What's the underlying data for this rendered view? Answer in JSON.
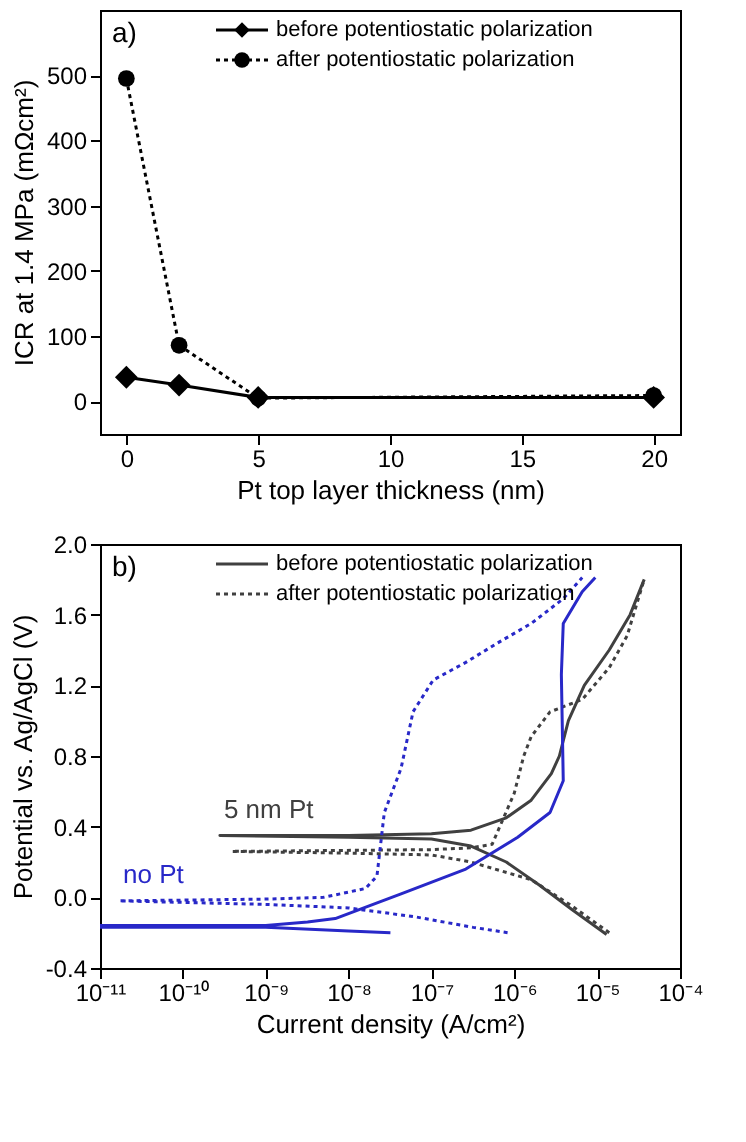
{
  "chart_data": [
    {
      "type": "line",
      "xlabel": "Pt top layer thickness (nm)",
      "ylabel": "ICR at 1.4 MPa (mΩcm²)",
      "annotations": [
        "a)"
      ],
      "xlim": [
        -1,
        21
      ],
      "xticks": [
        0,
        5,
        10,
        15,
        20
      ],
      "ylim": [
        -50,
        600
      ],
      "yticks": [
        0,
        100,
        200,
        300,
        400,
        500
      ],
      "grid": false,
      "legend": "top left",
      "series": [
        {
          "name": "before potentiostatic polarization",
          "color": "#000000",
          "marker": "diamond",
          "line_style": "solid",
          "x": [
            0,
            2,
            5,
            20
          ],
          "values": [
            37,
            25,
            6,
            6
          ]
        },
        {
          "name": "after potentiostatic polarization",
          "color": "#000000",
          "marker": "circle",
          "line_style": "dotted",
          "x": [
            0,
            2,
            5,
            20
          ],
          "values": [
            495,
            86,
            5,
            9
          ]
        }
      ]
    },
    {
      "type": "line",
      "xlabel": "Current density (A/cm²)",
      "ylabel": "Potential vs. Ag/AgCl (V)",
      "log": "x",
      "grid": false,
      "legend": "top left",
      "annotations": [
        "b)",
        {
          "text": "5 nm Pt",
          "x": 2.8e-10,
          "y": 0.35
        },
        {
          "text": "no Pt",
          "x": 1.7e-11,
          "y": -0.02
        }
      ],
      "xlim": [
        1e-11,
        0.0001
      ],
      "xticks": [
        {
          "value": 1e-11,
          "label": "10⁻¹¹"
        },
        {
          "value": 1e-10,
          "label": "10⁻¹⁰"
        },
        {
          "value": 1e-09,
          "label": "10⁻⁹"
        },
        {
          "value": 1e-08,
          "label": "10⁻⁸"
        },
        {
          "value": 1e-07,
          "label": "10⁻⁷"
        },
        {
          "value": 1e-06,
          "label": "10⁻⁶"
        },
        {
          "value": 1e-05,
          "label": "10⁻⁵"
        },
        {
          "value": 0.0001,
          "label": "10⁻⁴"
        }
      ],
      "ylim": [
        -0.4,
        2.0
      ],
      "yticks": [
        -0.4,
        {
          "value": 0,
          "label": "0.0"
        },
        0.4,
        0.8,
        1.2,
        1.6,
        {
          "value": 2.0,
          "label": "2.0"
        }
      ],
      "series": [
        {
          "name": "before potentiostatic polarization",
          "color": "#404040",
          "marker": "none",
          "line_style": "solid",
          "x": [
            1.3e-05,
            5e-06,
            2e-06,
            8e-07,
            3e-07,
            1e-07,
            1e-08,
            2.8e-10,
            2.8e-10,
            1e-08,
            1e-07,
            3e-07,
            8e-07,
            1.6e-06,
            2.8e-06,
            3.5e-06,
            4.5e-06,
            7e-06,
            1.4e-05,
            2.5e-05,
            3.7e-05
          ],
          "values": [
            -0.21,
            -0.07,
            0.07,
            0.2,
            0.29,
            0.33,
            0.34,
            0.35,
            0.35,
            0.35,
            0.36,
            0.38,
            0.45,
            0.55,
            0.7,
            0.8,
            1.0,
            1.2,
            1.4,
            1.6,
            1.8
          ]
        },
        {
          "name": "after potentiostatic polarization",
          "color": "#404040",
          "marker": "none",
          "line_style": "dotted",
          "x": [
            1.4e-05,
            5e-06,
            1.6e-06,
            3e-07,
            1e-07,
            1e-08,
            3.9e-10,
            3.9e-10,
            1e-07,
            3e-07,
            5.4e-07,
            1e-06,
            1.3e-06,
            1.6e-06,
            2.7e-06,
            6.6e-06,
            1.4e-05,
            2.3e-05,
            3.7e-05
          ],
          "values": [
            -0.2,
            -0.05,
            0.1,
            0.2,
            0.24,
            0.25,
            0.26,
            0.26,
            0.27,
            0.28,
            0.3,
            0.59,
            0.8,
            0.91,
            1.05,
            1.12,
            1.3,
            1.48,
            1.8
          ]
        },
        {
          "color": "#2828c8",
          "marker": "none",
          "line_style": "solid",
          "x": [
            3.2e-08,
            1e-08,
            1e-09,
            1e-11,
            1e-11,
            1e-09,
            3.2e-09,
            6.9e-09,
            4.3e-08,
            2.6e-07,
            1.1e-06,
            2.7e-06,
            3.9e-06,
            3.7e-06,
            3.9e-06,
            6.6e-06,
            9.5e-06
          ],
          "values": [
            -0.2,
            -0.19,
            -0.17,
            -0.17,
            -0.16,
            -0.16,
            -0.14,
            -0.12,
            0.02,
            0.16,
            0.34,
            0.48,
            0.66,
            1.26,
            1.55,
            1.73,
            1.81
          ]
        },
        {
          "color": "#2828c8",
          "marker": "none",
          "line_style": "dotted",
          "x": [
            8.3e-07,
            3.2e-07,
            6.3e-08,
            1e-08,
            1e-09,
            1.7e-11,
            1.7e-11,
            1e-09,
            5e-09,
            1.6e-08,
            2.2e-08,
            2.7e-08,
            4.3e-08,
            6e-08,
            1.05e-07,
            2.6e-07,
            6.3e-07,
            1.6e-06,
            3.9e-06,
            6.6e-06
          ],
          "values": [
            -0.2,
            -0.17,
            -0.11,
            -0.06,
            -0.04,
            -0.02,
            -0.02,
            -0.01,
            0.0,
            0.05,
            0.12,
            0.48,
            0.73,
            1.05,
            1.23,
            1.33,
            1.44,
            1.55,
            1.69,
            1.81
          ]
        }
      ]
    }
  ]
}
